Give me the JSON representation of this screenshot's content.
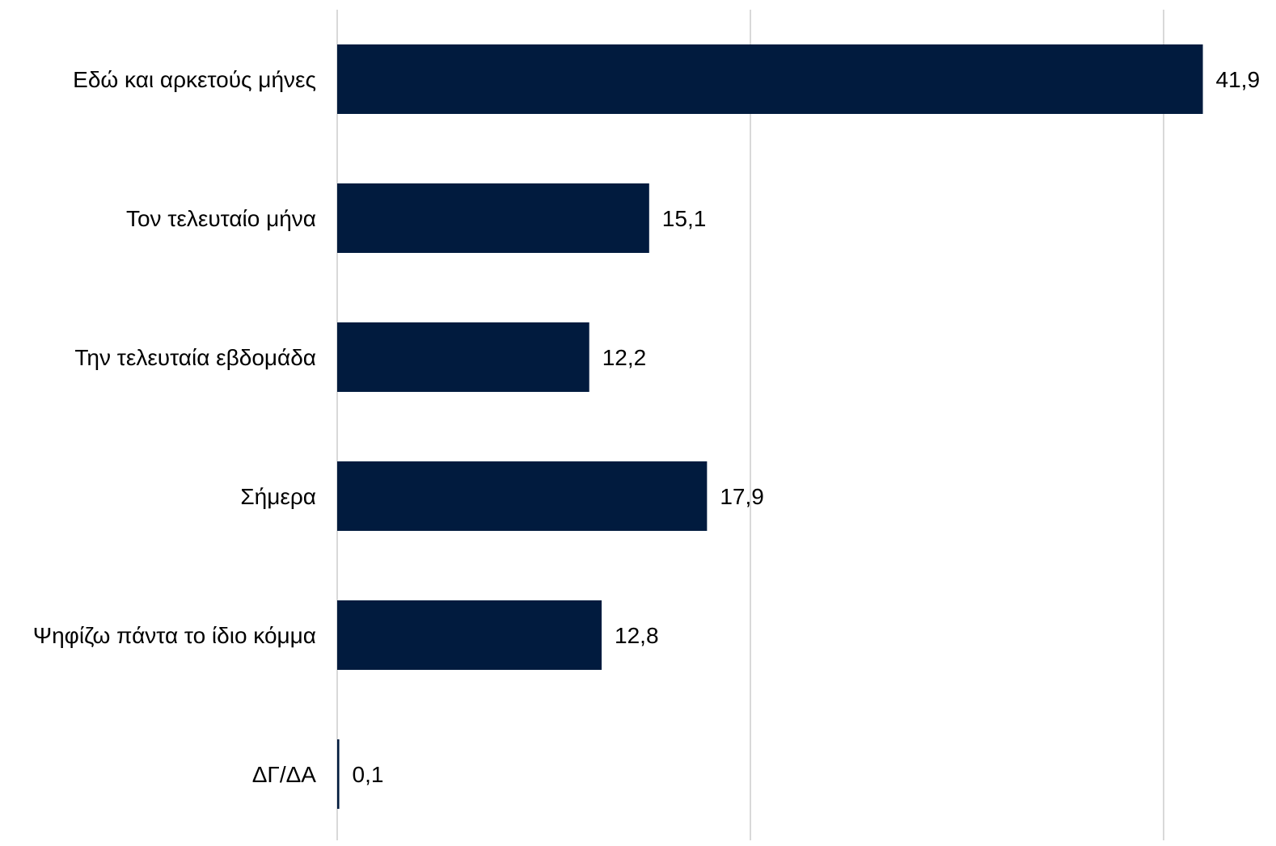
{
  "chart_data": {
    "type": "bar",
    "orientation": "horizontal",
    "title": "",
    "xlabel": "",
    "ylabel": "",
    "categories": [
      "Εδώ και αρκετούς μήνες",
      "Τον τελευταίο μήνα",
      "Την τελευταία εβδομάδα",
      "Σήμερα",
      "Ψηφίζω πάντα το ίδιο κόμμα",
      "ΔΓ/ΔΑ"
    ],
    "values": [
      41.9,
      15.1,
      12.2,
      17.9,
      12.8,
      0.1
    ],
    "value_labels": [
      "41,9",
      "15,1",
      "12,2",
      "17,9",
      "12,8",
      "0,1"
    ],
    "xlim": [
      0,
      45
    ],
    "gridlines": [
      0,
      20,
      40
    ],
    "grid": true,
    "show_tick_labels": false,
    "legend": "none",
    "bar_color": "#011b3e",
    "grid_color": "#d9d9d9"
  }
}
